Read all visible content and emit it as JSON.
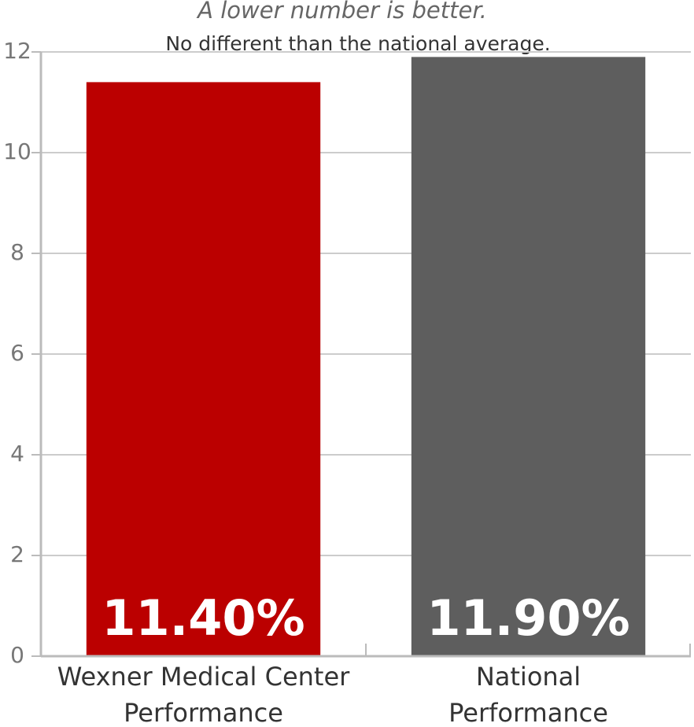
{
  "chart_data": {
    "type": "bar",
    "title": "A lower number is better.",
    "subtitle": "No different than the national average.",
    "categories": [
      "Wexner Medical Center Performance",
      "National Performance"
    ],
    "values": [
      11.4,
      11.9
    ],
    "value_labels": [
      "11.40%",
      "11.90%"
    ],
    "colors": [
      "#bb0000",
      "#5e5e5e"
    ],
    "ylim": [
      0,
      12
    ],
    "yticks": [
      0,
      2,
      4,
      6,
      8,
      10,
      12
    ],
    "grid": true
  }
}
